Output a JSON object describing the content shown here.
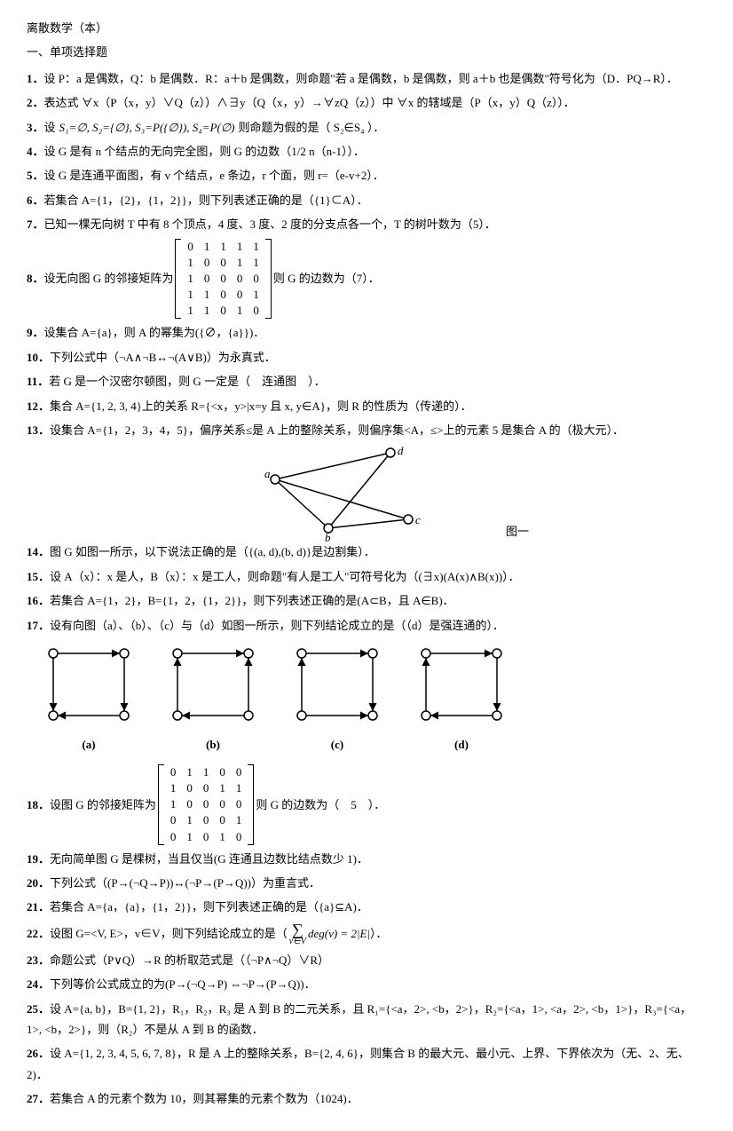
{
  "header": {
    "title": "离散数学（本）",
    "section": "一、单项选择题"
  },
  "questions": {
    "q1": "设 P：a 是偶数，Q：b 是偶数．R：a＋b 是偶数，则命题\"若 a 是偶数，b 是偶数，则 a＋b 也是偶数\"符号化为（D．PQ→R）．",
    "q2": "表达式 ∀x（P（x，y）∨Q（z））∧∃y（Q（x，y）→∀zQ（z））中 ∀x 的辖域是（P（x，y）Q（z））．",
    "q3_pre": "设",
    "q3_math": "S₁=∅, S₂={∅}, S₃=P({∅}), S₄=P(∅)",
    "q3_post": "则命题为假的是（ S₂∈S₄ ）．",
    "q4": "设 G 是有 n 个结点的无向完全图，则 G 的边数（1/2 n（n-1））．",
    "q5": "设 G 是连通平面图，有 v 个结点，e 条边，r 个面，则 r=（e-v+2）．",
    "q6": "若集合 A={1，{2}，{1，2}}，则下列表述正确的是（{1}⊂A）．",
    "q7": "已知一棵无向树 T 中有 8 个顶点，4 度、3 度、2 度的分支点各一个，T 的树叶数为（5）．",
    "q8_pre": "设无向图 G 的邻接矩阵为",
    "q8_matrix": [
      [
        "0",
        "1",
        "1",
        "1",
        "1"
      ],
      [
        "1",
        "0",
        "0",
        "1",
        "1"
      ],
      [
        "1",
        "0",
        "0",
        "0",
        "0"
      ],
      [
        "1",
        "1",
        "0",
        "0",
        "1"
      ],
      [
        "1",
        "1",
        "0",
        "1",
        "0"
      ]
    ],
    "q8_post": "则 G 的边数为（7）．",
    "q9": "设集合 A={a}，则 A 的幂集为({∅，{a}})．",
    "q10": "下列公式中（¬A∧¬B↔¬(A∨B)）为永真式．",
    "q11": "若 G 是一个汉密尔顿图，则 G 一定是（　连通图　）．",
    "q12": "集合 A={1, 2, 3, 4}上的关系 R={<x，y>|x=y 且 x, y∈A}，则 R 的性质为（传递的）．",
    "q13": "设集合 A={1，2，3，4，5}，偏序关系≤是 A 上的整除关系，则偏序集<A，≤>上的元素 5 是集合 A 的（极大元）．",
    "q14": "图 G 如图一所示，以下说法正确的是（{(a, d),(b, d)}是边割集）．",
    "fig1_label": "图一",
    "fig1_nodes": {
      "a": "a",
      "b": "b",
      "c": "c",
      "d": "d"
    },
    "q15": "设 A（x）：x 是人，B（x）：x 是工人，则命题\"有人是工人\"可符号化为（(∃x)(A(x)∧B(x))）．",
    "q16": "若集合 A={1，2}，B={1，2，{1，2}}，则下列表述正确的是(A⊂B，且 A∈B)．",
    "q17": "设有向图（a）、（b）、（c）与（d）如图一所示，则下列结论成立的是（（d）是强连通的）．",
    "graph_labels": {
      "a": "(a)",
      "b": "(b)",
      "c": "(c)",
      "d": "(d)"
    },
    "q18_pre": "设图 G 的邻接矩阵为",
    "q18_matrix": [
      [
        "0",
        "1",
        "1",
        "0",
        "0"
      ],
      [
        "1",
        "0",
        "0",
        "1",
        "1"
      ],
      [
        "1",
        "0",
        "0",
        "0",
        "0"
      ],
      [
        "0",
        "1",
        "0",
        "0",
        "1"
      ],
      [
        "0",
        "1",
        "0",
        "1",
        "0"
      ]
    ],
    "q18_post": "则 G 的边数为（　5　）．",
    "q19": "无向简单图 G 是棵树，当且仅当(G 连通且边数比结点数少 1)．",
    "q20": "下列公式（(P→(¬Q→P))↔(¬P→(P→Q))）为重言式．",
    "q21": "若集合 A={a，{a}，{1，2}}，则下列表述正确的是（{a}⊆A)．",
    "q22_pre": "设图 G=<V, E>，v∈V，则下列结论成立的是（",
    "q22_sum": "∑",
    "q22_sub": "v∈V",
    "q22_mid": "deg(v) = 2|E|",
    "q22_post": "）．",
    "q23": "命题公式（P∨Q）→R 的析取范式是（（¬P∧¬Q）∨R）",
    "q24": "下列等价公式成立的为(P→(¬Q→P) ⇔¬P→(P→Q))．",
    "q25": "设 A={a, b}，B={1, 2}，R₁，R₂，R₃ 是 A 到 B 的二元关系，且 R₁={<a，2>, <b，2>}，R₂={<a，1>, <a，2>, <b，1>}，R₃={<a，1>, <b，2>}，则（R₂）不是从 A 到 B 的函数．",
    "q26": "设 A={1, 2, 3, 4, 5, 6, 7, 8}，R 是 A 上的整除关系，B={2, 4, 6}，则集合 B 的最大元、最小元、上界、下界依次为（无、2、无、2)．",
    "q27": "若集合 A 的元素个数为 10，则其幂集的元素个数为（1024)．"
  },
  "colors": {
    "text": "#000000",
    "bg": "#ffffff",
    "edge": "#000000"
  }
}
